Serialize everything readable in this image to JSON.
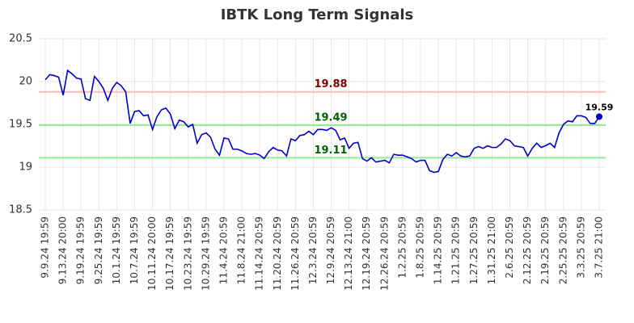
{
  "chart_data": {
    "type": "line",
    "title": "IBTK Long Term Signals",
    "categories": [
      "9.9.24 19:59",
      null,
      null,
      null,
      "9.13.24 20:00",
      null,
      null,
      null,
      "9.19.24 19:59",
      null,
      null,
      null,
      "9.25.24 19:59",
      null,
      null,
      null,
      "10.1.24 19:59",
      null,
      null,
      null,
      "10.7.24 19:59",
      null,
      null,
      null,
      "10.11.24 20:00",
      null,
      null,
      null,
      "10.17.24 19:59",
      null,
      null,
      null,
      "10.23.24 19:59",
      null,
      null,
      null,
      "10.29.24 19:59",
      null,
      null,
      null,
      "11.4.24 20:59",
      null,
      null,
      null,
      "11.8.24 21:00",
      null,
      null,
      null,
      "11.14.24 20:59",
      null,
      null,
      null,
      "11.20.24 20:59",
      null,
      null,
      null,
      "11.26.24 20:59",
      null,
      null,
      null,
      "12.3.24 20:59",
      null,
      null,
      null,
      "12.9.24 20:59",
      null,
      null,
      null,
      "12.13.24 21:00",
      null,
      null,
      null,
      "12.19.24 20:59",
      null,
      null,
      null,
      "12.26.24 20:59",
      null,
      null,
      null,
      "1.2.25 20:59",
      null,
      null,
      null,
      "1.8.25 20:59",
      null,
      null,
      null,
      "1.14.25 20:59",
      null,
      null,
      null,
      "1.21.25 20:59",
      null,
      null,
      null,
      "1.27.25 20:59",
      null,
      null,
      null,
      "1.31.25 21:00",
      null,
      null,
      null,
      "2.6.25 20:59",
      null,
      null,
      null,
      "2.12.25 20:59",
      null,
      null,
      null,
      "2.19.25 20:59",
      null,
      null,
      null,
      "2.25.25 20:59",
      null,
      null,
      null,
      "3.3.25 20:59",
      null,
      null,
      null,
      "3.7.25 21:00"
    ],
    "values": [
      20.02,
      20.08,
      20.07,
      20.05,
      19.84,
      20.13,
      20.09,
      20.04,
      20.03,
      19.8,
      19.78,
      20.06,
      20.0,
      19.92,
      19.78,
      19.92,
      19.99,
      19.95,
      19.88,
      19.51,
      19.65,
      19.66,
      19.6,
      19.61,
      19.44,
      19.59,
      19.67,
      19.69,
      19.62,
      19.45,
      19.55,
      19.53,
      19.47,
      19.5,
      19.28,
      19.38,
      19.4,
      19.35,
      19.21,
      19.14,
      19.34,
      19.33,
      19.21,
      19.21,
      19.19,
      19.16,
      19.15,
      19.16,
      19.14,
      19.1,
      19.18,
      19.23,
      19.2,
      19.19,
      19.13,
      19.33,
      19.31,
      19.37,
      19.38,
      19.42,
      19.38,
      19.44,
      19.44,
      19.43,
      19.46,
      19.43,
      19.32,
      19.34,
      19.22,
      19.28,
      19.29,
      19.1,
      19.07,
      19.11,
      19.06,
      19.07,
      19.08,
      19.05,
      19.15,
      19.14,
      19.14,
      19.12,
      19.1,
      19.06,
      19.08,
      19.08,
      18.96,
      18.94,
      18.95,
      19.09,
      19.15,
      19.13,
      19.17,
      19.13,
      19.12,
      19.13,
      19.22,
      19.24,
      19.22,
      19.25,
      19.23,
      19.23,
      19.27,
      19.33,
      19.31,
      19.25,
      19.24,
      19.23,
      19.13,
      19.22,
      19.28,
      19.23,
      19.25,
      19.28,
      19.23,
      19.4,
      19.5,
      19.54,
      19.53,
      19.6,
      19.6,
      19.58,
      19.51,
      19.51,
      19.59
    ],
    "color": "#0000cc",
    "ylim": [
      18.5,
      20.5
    ],
    "yticks": [
      18.5,
      19,
      19.5,
      20,
      20.5
    ],
    "grid": true,
    "reference_lines": [
      {
        "value": 19.88,
        "color": "#ffbbbb",
        "label_color": "#8b0000"
      },
      {
        "value": 19.49,
        "color": "#90ee90",
        "label_color": "#006400"
      },
      {
        "value": 19.11,
        "color": "#90ee90",
        "label_color": "#006400"
      }
    ]
  }
}
